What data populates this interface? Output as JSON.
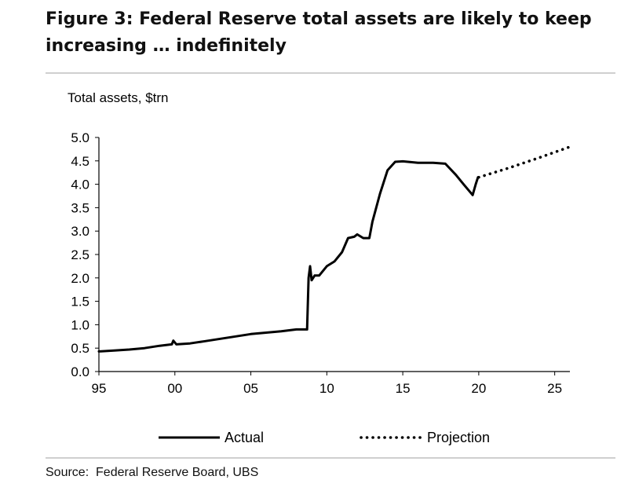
{
  "figure": {
    "title": "Figure 3: Federal Reserve total assets are likely to keep increasing … indefinitely",
    "source": "Source:  Federal Reserve Board, UBS"
  },
  "colors": {
    "line": "#000000",
    "rule": "#cfcfcf"
  },
  "chart_data": {
    "type": "line",
    "title": "Figure 3: Federal Reserve total assets are likely to keep increasing … indefinitely",
    "ylabel": "Total assets, $trn",
    "xlabel": "",
    "xlim": [
      1995,
      2026
    ],
    "ylim": [
      0,
      5
    ],
    "x_ticks": [
      1995,
      2000,
      2005,
      2010,
      2015,
      2020,
      2025
    ],
    "x_tick_labels": [
      "95",
      "00",
      "05",
      "10",
      "15",
      "20",
      "25"
    ],
    "y_ticks": [
      0,
      0.5,
      1,
      1.5,
      2,
      2.5,
      3,
      3.5,
      4,
      4.5,
      5
    ],
    "y_tick_labels": [
      "0.0",
      "0.5",
      "1.0",
      "1.5",
      "2.0",
      "2.5",
      "3.0",
      "3.5",
      "4.0",
      "4.5",
      "5.0"
    ],
    "grid": false,
    "legend_position": "bottom",
    "series": [
      {
        "name": "Actual",
        "style": "solid",
        "points": [
          [
            1995.0,
            0.43
          ],
          [
            1996.0,
            0.45
          ],
          [
            1997.0,
            0.47
          ],
          [
            1998.0,
            0.5
          ],
          [
            1999.0,
            0.55
          ],
          [
            1999.8,
            0.58
          ],
          [
            1999.9,
            0.66
          ],
          [
            2000.1,
            0.58
          ],
          [
            2001.0,
            0.6
          ],
          [
            2002.0,
            0.65
          ],
          [
            2003.0,
            0.7
          ],
          [
            2004.0,
            0.75
          ],
          [
            2005.0,
            0.8
          ],
          [
            2006.0,
            0.83
          ],
          [
            2007.0,
            0.86
          ],
          [
            2008.0,
            0.9
          ],
          [
            2008.7,
            0.9
          ],
          [
            2008.8,
            2.0
          ],
          [
            2008.9,
            2.25
          ],
          [
            2009.0,
            1.95
          ],
          [
            2009.2,
            2.05
          ],
          [
            2009.5,
            2.05
          ],
          [
            2010.0,
            2.25
          ],
          [
            2010.5,
            2.35
          ],
          [
            2011.0,
            2.55
          ],
          [
            2011.4,
            2.85
          ],
          [
            2011.8,
            2.88
          ],
          [
            2012.0,
            2.93
          ],
          [
            2012.4,
            2.85
          ],
          [
            2012.8,
            2.85
          ],
          [
            2013.0,
            3.2
          ],
          [
            2013.5,
            3.8
          ],
          [
            2014.0,
            4.3
          ],
          [
            2014.5,
            4.48
          ],
          [
            2015.0,
            4.49
          ],
          [
            2016.0,
            4.46
          ],
          [
            2017.0,
            4.46
          ],
          [
            2017.8,
            4.44
          ],
          [
            2018.5,
            4.2
          ],
          [
            2019.0,
            4.0
          ],
          [
            2019.6,
            3.77
          ],
          [
            2019.8,
            4.0
          ],
          [
            2019.95,
            4.15
          ]
        ]
      },
      {
        "name": "Projection",
        "style": "dotted",
        "points": [
          [
            2020.0,
            4.15
          ],
          [
            2022.0,
            4.35
          ],
          [
            2024.0,
            4.57
          ],
          [
            2026.0,
            4.8
          ]
        ]
      }
    ]
  }
}
